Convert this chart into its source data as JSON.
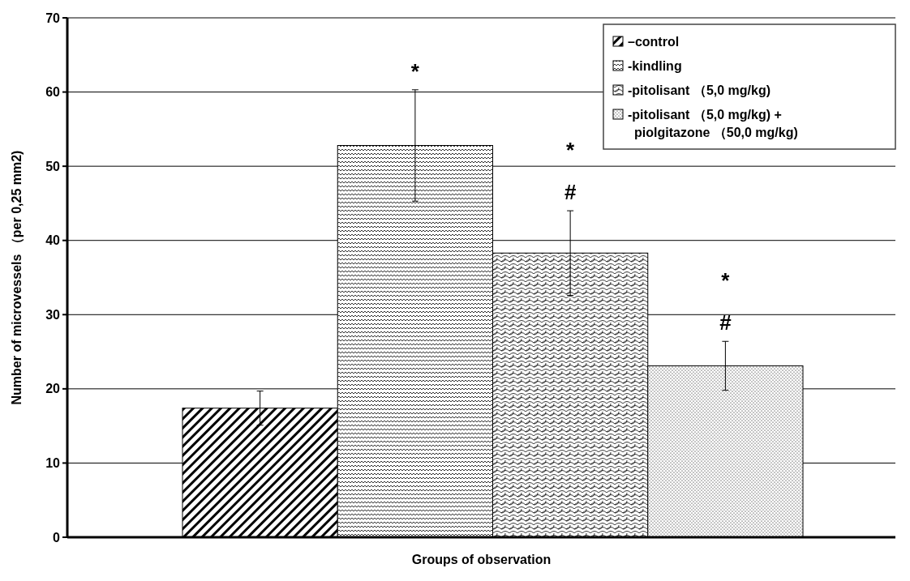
{
  "chart_data": {
    "type": "bar",
    "xlabel": "Groups of observation",
    "ylabel": "Number of microvessels （per 0,25 mm2)",
    "categories": [
      null,
      null,
      null,
      null
    ],
    "series": [
      {
        "name": "–control",
        "color": "#000000",
        "values": [
          17.4,
          null,
          null,
          null
        ],
        "errors": [
          2.3,
          null,
          null,
          null
        ]
      },
      {
        "name": "-kindling",
        "color": "#000000",
        "values": [
          null,
          52.8,
          null,
          null
        ],
        "errors": [
          null,
          7.5,
          null,
          null
        ]
      },
      {
        "name": "-pitolisant （5,0 mg/kg)",
        "color": "#000000",
        "values": [
          null,
          null,
          38.3,
          null
        ],
        "errors": [
          null,
          null,
          5.7,
          null
        ]
      },
      {
        "name": "-pitolisant （5,0 mg/kg) + piolgitazone （50,0 mg/kg)",
        "color": "#000000",
        "values": [
          null,
          null,
          null,
          23.1
        ],
        "errors": [
          null,
          null,
          null,
          3.3
        ]
      }
    ],
    "annotations": [
      "*",
      "* #",
      "* #"
    ],
    "ylim": [
      0,
      70
    ],
    "yticks": [
      0,
      10,
      20,
      30,
      40,
      50,
      60,
      70
    ],
    "grid": "y",
    "legend": "top right"
  }
}
